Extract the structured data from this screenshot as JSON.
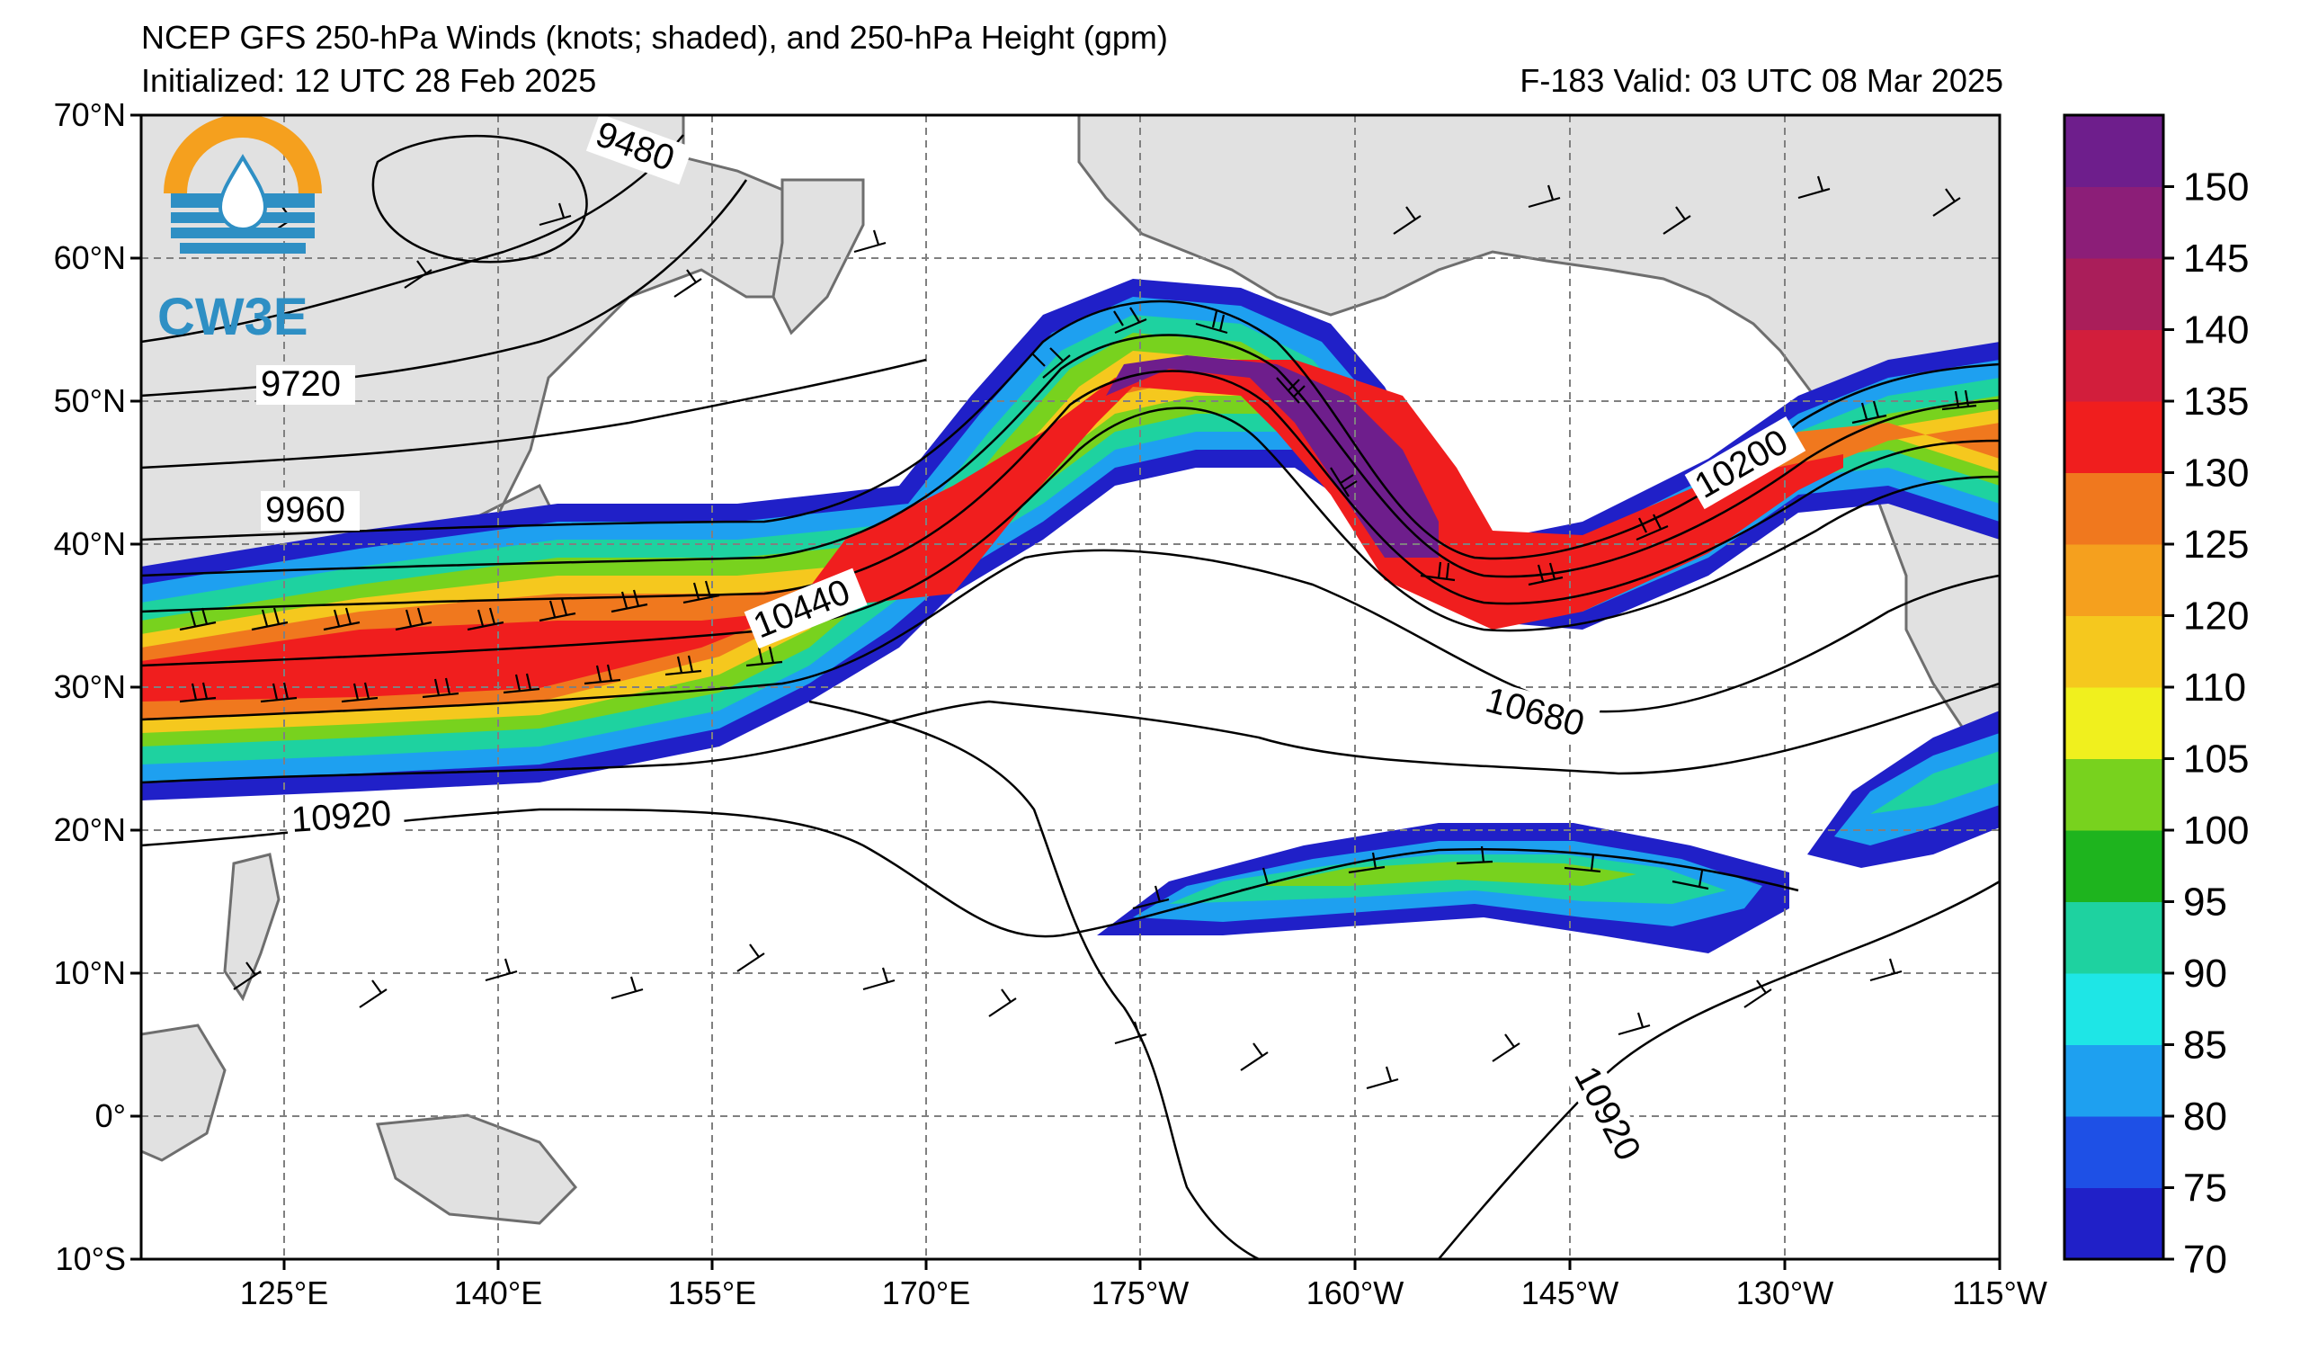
{
  "header": {
    "title": "NCEP GFS 250-hPa Winds (knots; shaded), and 250-hPa Height (gpm)",
    "initialized": "Initialized: 12 UTC 28 Feb 2025",
    "valid": "F-183  Valid: 03 UTC 08 Mar 2025"
  },
  "logo": {
    "text": "CW3E"
  },
  "axes": {
    "lat_labels": [
      "70°N",
      "60°N",
      "50°N",
      "40°N",
      "30°N",
      "20°N",
      "10°N",
      "0°",
      "10°S"
    ],
    "lon_labels": [
      "125°E",
      "140°E",
      "155°E",
      "170°E",
      "175°W",
      "160°W",
      "145°W",
      "130°W",
      "115°W"
    ]
  },
  "colorbar": {
    "ticks": [
      "70",
      "75",
      "80",
      "85",
      "90",
      "95",
      "100",
      "105",
      "110",
      "120",
      "125",
      "130",
      "135",
      "140",
      "145",
      "150"
    ],
    "colors": [
      "#2020c8",
      "#1e50e6",
      "#1ea0f0",
      "#1ee6e6",
      "#1ed2a0",
      "#1eb41e",
      "#78d21e",
      "#f0f01e",
      "#f5c81e",
      "#f5a01e",
      "#f0781e",
      "#f01e1e",
      "#d21e3c",
      "#aa1e5a",
      "#8c1e78",
      "#6e1e8c"
    ]
  },
  "contours": {
    "labels": [
      "9480",
      "9720",
      "9960",
      "10200",
      "10440",
      "10680",
      "10920",
      "10920"
    ]
  },
  "colors": {
    "land": "#e1e1e1",
    "coast": "#6e6e6e",
    "grid": "#808080"
  }
}
